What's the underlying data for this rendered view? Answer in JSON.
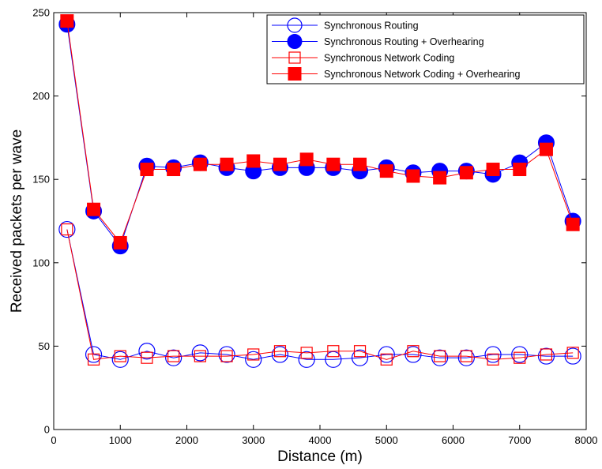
{
  "chart_data": {
    "type": "line",
    "title": "",
    "xlabel": "Distance (m)",
    "ylabel": "Received packets per wave",
    "xlim": [
      0,
      8000
    ],
    "ylim": [
      0,
      250
    ],
    "xticks": [
      0,
      1000,
      2000,
      3000,
      4000,
      5000,
      6000,
      7000,
      8000
    ],
    "yticks": [
      0,
      50,
      100,
      150,
      200,
      250
    ],
    "grid": false,
    "legend_position": "top-right",
    "x": [
      200,
      600,
      1000,
      1400,
      1800,
      2200,
      2600,
      3000,
      3400,
      3800,
      4200,
      4600,
      5000,
      5400,
      5800,
      6200,
      6600,
      7000,
      7400,
      7800
    ],
    "series": [
      {
        "name": "Synchronous Routing",
        "color": "#0000ff",
        "marker": "circle-open",
        "values": [
          120,
          45,
          42,
          47,
          43,
          46,
          45,
          42,
          45,
          42,
          42,
          43,
          45,
          45,
          43,
          43,
          45,
          45,
          44,
          44
        ]
      },
      {
        "name": "Synchronous Routing + Overhearing",
        "color": "#0000ff",
        "marker": "circle-filled",
        "values": [
          243,
          131,
          110,
          158,
          157,
          160,
          157,
          155,
          157,
          157,
          157,
          155,
          157,
          154,
          155,
          155,
          153,
          160,
          172,
          125
        ]
      },
      {
        "name": "Synchronous Network Coding",
        "color": "#ff0000",
        "marker": "square-open",
        "values": [
          120,
          42,
          44,
          43,
          44,
          44,
          44,
          45,
          47,
          46,
          47,
          47,
          42,
          47,
          44,
          44,
          42,
          43,
          45,
          46
        ]
      },
      {
        "name": "Synchronous Network Coding + Overhearing",
        "color": "#ff0000",
        "marker": "square-filled",
        "values": [
          245,
          132,
          112,
          156,
          156,
          159,
          159,
          161,
          159,
          162,
          159,
          159,
          155,
          152,
          151,
          154,
          156,
          156,
          168,
          123
        ]
      }
    ]
  }
}
